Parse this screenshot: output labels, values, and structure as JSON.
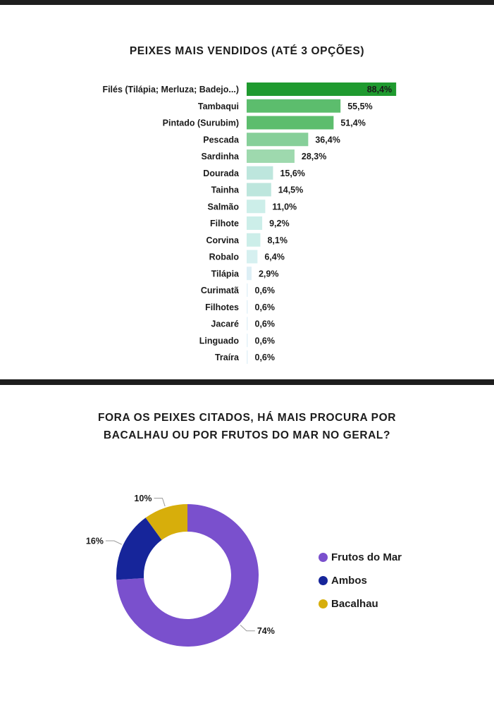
{
  "bar_chart": {
    "title": "PEIXES MAIS VENDIDOS (ATÉ 3 OPÇÕES)"
  },
  "donut_chart": {
    "title_lines": [
      "FORA OS PEIXES CITADOS, HÁ MAIS PROCURA POR",
      "BACALHAU OU POR FRUTOS DO MAR NO GERAL?"
    ]
  },
  "chart_data": [
    {
      "type": "bar",
      "orientation": "horizontal",
      "title": "PEIXES MAIS VENDIDOS (ATÉ 3 OPÇÕES)",
      "categories": [
        "Filés (Tilápia; Merluza; Badejo...)",
        "Tambaqui",
        "Pintado (Surubim)",
        "Pescada",
        "Sardinha",
        "Dourada",
        "Tainha",
        "Salmão",
        "Filhote",
        "Corvina",
        "Robalo",
        "Tilápia",
        "Curimatã",
        "Filhotes",
        "Jacaré",
        "Linguado",
        "Traíra"
      ],
      "values": [
        88.4,
        55.5,
        51.4,
        36.4,
        28.3,
        15.6,
        14.5,
        11.0,
        9.2,
        8.1,
        6.4,
        2.9,
        0.6,
        0.6,
        0.6,
        0.6,
        0.6
      ],
      "value_labels": [
        "88,4%",
        "55,5%",
        "51,4%",
        "36,4%",
        "28,3%",
        "15,6%",
        "14,5%",
        "11,0%",
        "9,2%",
        "8,1%",
        "6,4%",
        "2,9%",
        "0,6%",
        "0,6%",
        "0,6%",
        "0,6%",
        "0,6%"
      ],
      "colors": [
        "#1f9a2f",
        "#5cbd6d",
        "#5cbd6d",
        "#86cf99",
        "#9ed9ae",
        "#bde6dd",
        "#bde6dd",
        "#cceee9",
        "#cceee9",
        "#cceee9",
        "#d6f0f0",
        "#ddeff5",
        "#e3f2f8",
        "#e3f2f8",
        "#e3f2f8",
        "#e3f2f8",
        "#e3f2f8"
      ],
      "xlim": [
        0,
        100
      ],
      "grid": false,
      "legend": "none"
    },
    {
      "type": "pie",
      "variant": "donut",
      "title": "FORA OS PEIXES CITADOS, HÁ MAIS PROCURA POR BACALHAU OU POR FRUTOS DO MAR NO GERAL?",
      "slices": [
        {
          "name": "Frutos do Mar",
          "value": 74,
          "label": "74%",
          "color": "#7a50cd"
        },
        {
          "name": "Ambos",
          "value": 16,
          "label": "16%",
          "color": "#16259a"
        },
        {
          "name": "Bacalhau",
          "value": 10,
          "label": "10%",
          "color": "#d7ae0b"
        }
      ],
      "legend": "right"
    }
  ]
}
